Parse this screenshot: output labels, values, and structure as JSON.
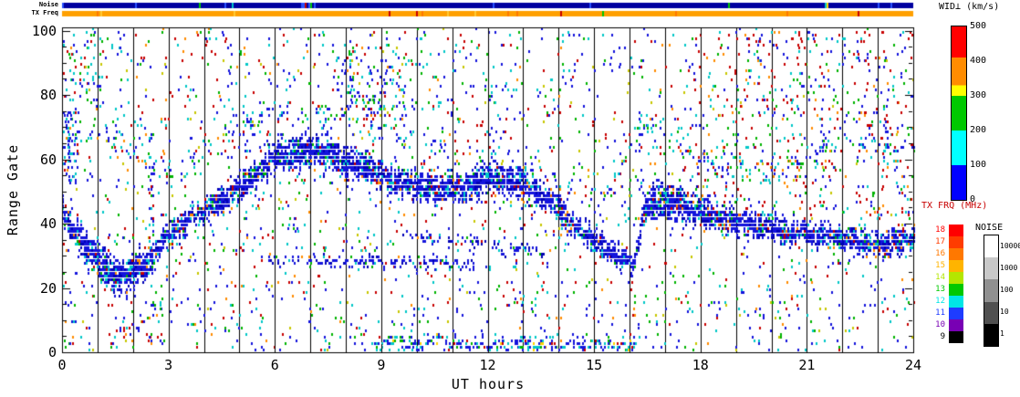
{
  "strips": {
    "noise_label": "Noise",
    "tx_freq_label": "TX Freq",
    "noise_base_color": "#0000a0",
    "tx_freq_base_color": "#ffa000"
  },
  "axes": {
    "xlabel": "UT hours",
    "ylabel": "Range Gate",
    "x_ticks": [
      "0",
      "3",
      "6",
      "9",
      "12",
      "15",
      "18",
      "21",
      "24"
    ],
    "x_tick_values": [
      0,
      3,
      6,
      9,
      12,
      15,
      18,
      21,
      24
    ],
    "y_ticks": [
      "0",
      "20",
      "40",
      "60",
      "80",
      "100"
    ],
    "y_tick_values": [
      0,
      20,
      40,
      60,
      80,
      100
    ],
    "x_range": [
      0,
      24
    ],
    "y_range": [
      0,
      100
    ]
  },
  "colorbar": {
    "title": "WID⊥ (km/s)",
    "tick_labels": [
      "0",
      "100",
      "200",
      "300",
      "400",
      "500"
    ],
    "tick_values": [
      0,
      100,
      200,
      300,
      400,
      500
    ],
    "range": [
      0,
      500
    ],
    "stops": [
      {
        "color": "#0000ff",
        "to": 20
      },
      {
        "color": "#00ffff",
        "to": 40
      },
      {
        "color": "#00c800",
        "to": 60
      },
      {
        "color": "#ffff00",
        "to": 66
      },
      {
        "color": "#ff8c00",
        "to": 82
      },
      {
        "color": "#ff0000",
        "to": 100
      }
    ]
  },
  "txfrq_legend": {
    "title": "TX FRQ (MHz)",
    "title_color": "#c80000",
    "entries": [
      {
        "label": "18",
        "color": "#ff0000"
      },
      {
        "label": "17",
        "color": "#ff3c00"
      },
      {
        "label": "16",
        "color": "#ff7800"
      },
      {
        "label": "15",
        "color": "#ffb400"
      },
      {
        "label": "14",
        "color": "#b4e600"
      },
      {
        "label": "13",
        "color": "#00c800"
      },
      {
        "label": "12",
        "color": "#00e6e6"
      },
      {
        "label": "11",
        "color": "#1e3cff"
      },
      {
        "label": "10",
        "color": "#7800b4"
      },
      {
        "label": "9",
        "color": "#000000"
      }
    ]
  },
  "noise_legend": {
    "title": "NOISE",
    "title_color": "#000000",
    "entries": [
      {
        "label": "10000",
        "color": "#ffffff"
      },
      {
        "label": "1000",
        "color": "#c8c8c8"
      },
      {
        "label": "100",
        "color": "#909090"
      },
      {
        "label": "10",
        "color": "#505050"
      },
      {
        "label": "1",
        "color": "#000000"
      }
    ]
  },
  "chart_data": {
    "type": "heatmap",
    "title": "",
    "xlabel": "UT hours",
    "ylabel": "Range Gate",
    "value_label": "WID⊥ (km/s)",
    "x_range": [
      0,
      24
    ],
    "y_range": [
      0,
      100
    ],
    "value_range": [
      0,
      500
    ],
    "gridlines": "vertical black line every 1 UT hour",
    "description": "Radar range-time plot of perpendicular spectral width. A dominant low-width (blue) echo band meanders in range gate through the day: ~gate 40 at 00 UT, dips to ~23 near 01-02 UT, rises to ~60-62 near 06-08 UT, holds ~50-55 through 12 UT, descends to ~27 by 16 UT, jumps to ~45 at 16.4 UT, then drifts down to ~33-36 by 24 UT. Sparse higher-width cyan/green/red scatter throughout, red-biased after 18 UT. Top strips show sky noise (dark blue) and transmit frequency (orange ~ 11 MHz band shown orange).",
    "seed": 7,
    "palettes": {
      "band": [
        [
          "#1414dc",
          58
        ],
        [
          "#0000b4",
          22
        ],
        [
          "#00c8c8",
          10
        ],
        [
          "#00b400",
          4
        ],
        [
          "#c80000",
          3
        ],
        [
          "#ff8c00",
          3
        ]
      ],
      "band-cyan": [
        [
          "#1414dc",
          50
        ],
        [
          "#00c8c8",
          30
        ],
        [
          "#00b400",
          10
        ],
        [
          "#c80000",
          5
        ],
        [
          "#ffd200",
          5
        ]
      ],
      "scatter-mix": [
        [
          "#1414dc",
          34
        ],
        [
          "#00c8c8",
          20
        ],
        [
          "#00b400",
          15
        ],
        [
          "#c80000",
          17
        ],
        [
          "#ff8c00",
          7
        ],
        [
          "#c8c800",
          7
        ]
      ],
      "scatter-blue": [
        [
          "#1414dc",
          55
        ],
        [
          "#00c8c8",
          25
        ],
        [
          "#00b400",
          8
        ],
        [
          "#c80000",
          8
        ],
        [
          "#ff8c00",
          4
        ]
      ],
      "scatter-red": [
        [
          "#c80000",
          45
        ],
        [
          "#00b400",
          14
        ],
        [
          "#1414dc",
          18
        ],
        [
          "#00c8c8",
          11
        ],
        [
          "#ff8c00",
          12
        ]
      ]
    },
    "bands": [
      {
        "name": "main-echo-band",
        "path": [
          [
            0,
            42
          ],
          [
            0.6,
            33
          ],
          [
            1.2,
            25
          ],
          [
            1.8,
            23
          ],
          [
            2.4,
            27
          ],
          [
            3,
            36
          ],
          [
            3.7,
            42
          ],
          [
            4.5,
            46
          ],
          [
            5.2,
            52
          ],
          [
            5.8,
            58
          ],
          [
            6.5,
            62
          ],
          [
            7.5,
            61
          ],
          [
            8.5,
            57
          ],
          [
            9.5,
            52
          ],
          [
            10.5,
            50
          ],
          [
            11.3,
            51
          ],
          [
            12,
            54
          ],
          [
            12.8,
            52
          ],
          [
            13.5,
            48
          ],
          [
            14.2,
            41
          ],
          [
            15,
            34
          ],
          [
            15.7,
            29
          ],
          [
            16.1,
            27
          ],
          [
            16.4,
            44
          ],
          [
            17,
            47
          ],
          [
            17.6,
            45
          ],
          [
            18.3,
            42
          ],
          [
            19,
            40
          ],
          [
            20,
            38
          ],
          [
            21,
            36
          ],
          [
            22,
            35
          ],
          [
            23,
            33
          ],
          [
            24,
            35
          ]
        ],
        "halfwidth": [
          [
            0,
            5
          ],
          [
            1,
            6
          ],
          [
            2,
            6
          ],
          [
            2.6,
            4
          ],
          [
            4,
            4
          ],
          [
            5.5,
            5
          ],
          [
            7,
            6
          ],
          [
            9,
            5
          ],
          [
            11,
            5
          ],
          [
            12.5,
            5
          ],
          [
            14,
            4
          ],
          [
            15.5,
            4
          ],
          [
            16.1,
            3
          ],
          [
            16.5,
            6
          ],
          [
            17.5,
            6
          ],
          [
            19,
            4
          ],
          [
            21,
            4
          ],
          [
            24,
            4
          ]
        ],
        "density": 0.7,
        "palette": "band"
      },
      {
        "name": "upper-scatter-band",
        "path": [
          [
            0,
            63
          ],
          [
            0.8,
            69
          ],
          [
            1.6,
            66
          ],
          [
            2.4,
            58
          ],
          [
            3.2,
            55
          ],
          [
            4,
            62
          ],
          [
            5,
            70
          ],
          [
            6,
            73
          ],
          [
            7,
            74
          ],
          [
            8,
            71
          ],
          [
            9,
            69
          ],
          [
            10,
            65
          ],
          [
            11,
            61
          ],
          [
            12,
            60
          ],
          [
            12.8,
            58
          ],
          [
            13.6,
            53
          ],
          [
            14.4,
            48
          ],
          [
            15.2,
            45
          ],
          [
            16.2,
            70
          ],
          [
            17,
            65
          ],
          [
            17.8,
            60
          ],
          [
            18.6,
            56
          ],
          [
            19.5,
            54
          ],
          [
            20.5,
            58
          ],
          [
            21.3,
            62
          ],
          [
            22.2,
            64
          ],
          [
            23,
            63
          ],
          [
            24,
            62
          ]
        ],
        "halfwidth": [
          [
            0,
            4
          ],
          [
            24,
            4
          ]
        ],
        "density": 0.1,
        "palette": "scatter-blue"
      },
      {
        "name": "low-thin-band",
        "path": [
          [
            5.6,
            28
          ],
          [
            7,
            28
          ],
          [
            9,
            27
          ],
          [
            10.5,
            27
          ],
          [
            11.6,
            26
          ]
        ],
        "halfwidth": [
          [
            0,
            1.2
          ],
          [
            24,
            1.2
          ]
        ],
        "density": 0.5,
        "palette": "band"
      },
      {
        "name": "mid-thin-band",
        "path": [
          [
            9.6,
            36
          ],
          [
            11,
            34
          ],
          [
            12.5,
            32
          ],
          [
            13.8,
            30
          ]
        ],
        "halfwidth": [
          [
            0,
            1.2
          ],
          [
            24,
            1.2
          ]
        ],
        "density": 0.35,
        "palette": "band"
      },
      {
        "name": "bottom-band",
        "path": [
          [
            8.8,
            2
          ],
          [
            12,
            2
          ],
          [
            16.2,
            2
          ]
        ],
        "halfwidth": [
          [
            0,
            2
          ],
          [
            24,
            2
          ]
        ],
        "density": 0.4,
        "palette": "band-cyan"
      },
      {
        "name": "bottom-left-streak",
        "path": [
          [
            1.3,
            2
          ],
          [
            2,
            8
          ],
          [
            2.8,
            15
          ]
        ],
        "halfwidth": [
          [
            0,
            2.5
          ],
          [
            24,
            2.5
          ]
        ],
        "density": 0.3,
        "palette": "scatter-mix"
      }
    ],
    "columns": [
      {
        "t": 0.15,
        "g1": 52,
        "g2": 74,
        "density": 0.3
      },
      {
        "t": 2.5,
        "g1": 30,
        "g2": 70,
        "density": 0.22
      },
      {
        "t": 5.15,
        "g1": 48,
        "g2": 76,
        "density": 0.25
      },
      {
        "t": 8.1,
        "g1": 62,
        "g2": 88,
        "density": 0.12
      },
      {
        "t": 10.6,
        "g1": 58,
        "g2": 82,
        "density": 0.12
      },
      {
        "t": 12.1,
        "g1": 58,
        "g2": 80,
        "density": 0.15
      },
      {
        "t": 16.25,
        "g1": 50,
        "g2": 80,
        "density": 0.15
      },
      {
        "t": 21.4,
        "g1": 55,
        "g2": 75,
        "density": 0.12
      },
      {
        "t": 23.2,
        "g1": 55,
        "g2": 78,
        "density": 0.18
      }
    ],
    "scatter": {
      "count": 2400,
      "palette": "scatter-mix"
    },
    "clusters": [
      {
        "name": "high-width-right",
        "t1": 17.5,
        "t2": 24,
        "g1": 40,
        "g2": 100,
        "count": 330,
        "palette": "scatter-red"
      },
      {
        "name": "upper-mid",
        "t1": 7.6,
        "t2": 9.7,
        "g1": 72,
        "g2": 96,
        "count": 120,
        "palette": "scatter-mix"
      },
      {
        "name": "upper-left",
        "t1": 0.2,
        "t2": 1.1,
        "g1": 78,
        "g2": 100,
        "count": 45,
        "palette": "scatter-mix"
      },
      {
        "name": "left-edge-echoes",
        "t1": 0.0,
        "t2": 0.45,
        "g1": 52,
        "g2": 75,
        "count": 60,
        "palette": "scatter-blue"
      }
    ]
  }
}
